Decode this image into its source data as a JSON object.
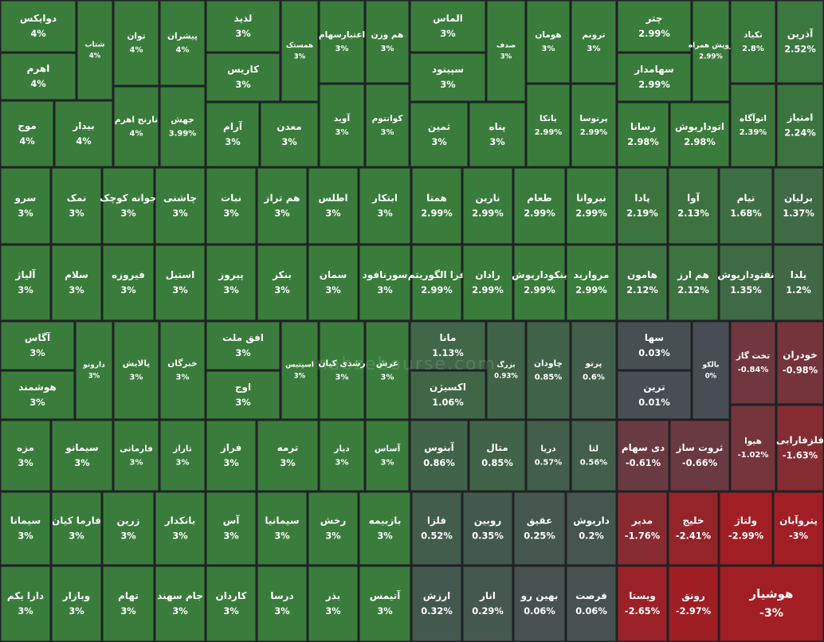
{
  "chart_data": {
    "type": "treemap",
    "watermark": "nabzebourse.com",
    "categories": [
      "دوایکس",
      "اهرم",
      "شتاب",
      "موج",
      "بیدار",
      "توان",
      "پیشران",
      "نارنج اهرم",
      "جهش",
      "لذیذ",
      "کاریس",
      "آرام",
      "معدن",
      "همستک",
      "اعتبارسهام",
      "آوید",
      "هم وزن",
      "کوانتوم",
      "الماس",
      "سپینود",
      "ثمین",
      "پناه",
      "صدف",
      "هومان",
      "بانکا",
      "ترونم",
      "پرتوسا",
      "چتر",
      "سهامدار",
      "رسانا",
      "اتوداریوش",
      "رویش همراه",
      "تکیاد",
      "اتوآگاه",
      "آذرین",
      "امتیاز",
      "سرو",
      "نمک",
      "جوانه کوچک",
      "چاشنی",
      "نبات",
      "هم تراز",
      "اطلس",
      "ابتکار",
      "همتا",
      "نارین",
      "طعام",
      "نیروانا",
      "پادا",
      "آوا",
      "تیام",
      "برلیان",
      "آلیاژ",
      "سلام",
      "فیروزه",
      "استیل",
      "پیروز",
      "بنکر",
      "سمان",
      "سورنافود",
      "فرا الگوریتم",
      "رادان",
      "بنکوداریوش",
      "مروارید",
      "هامون",
      "هم ارز",
      "نفتوداریوش",
      "یلدا",
      "آگاس",
      "هوشمند",
      "دارونو",
      "پالایش",
      "خبرگان",
      "افق ملت",
      "اوج",
      "اسپتیس",
      "رشدی کیان",
      "عرش",
      "مانا",
      "اکسیژن",
      "بزرگ",
      "چاودان",
      "پرتو",
      "سها",
      "ترین",
      "بالکو",
      "تخت گاز",
      "خودران",
      "هیوا",
      "فلزفارابی",
      "مزه",
      "سیمانو",
      "فارمانی",
      "تاراز",
      "فراز",
      "ترمه",
      "دیار",
      "آساس",
      "آبنوس",
      "متال",
      "دریا",
      "لتا",
      "دی سهام",
      "ثروت ساز",
      "سیمانا",
      "فارما کیان",
      "زرین",
      "بانکدار",
      "آس",
      "سیمانیا",
      "رخش",
      "بازبیمه",
      "فلزا",
      "روبین",
      "عقیق",
      "داریوش",
      "مدیر",
      "خلیج",
      "ولتاژ",
      "پتروآبان",
      "دارا یکم",
      "وبازار",
      "تهام",
      "جام سهند",
      "کاردان",
      "درسا",
      "بذر",
      "آتیمس",
      "ارزش",
      "انار",
      "بهین رو",
      "فرصت",
      "ویستا",
      "رونق",
      "هوشیار"
    ],
    "values": [
      4,
      4,
      4,
      4,
      4,
      4,
      4,
      4,
      3.99,
      3,
      3,
      3,
      3,
      3,
      3,
      3,
      3,
      3,
      3,
      3,
      3,
      3,
      3,
      3,
      2.99,
      3,
      2.99,
      2.99,
      2.99,
      2.98,
      2.98,
      2.99,
      2.8,
      2.39,
      2.52,
      2.24,
      3,
      3,
      3,
      3,
      3,
      3,
      3,
      3,
      2.99,
      2.99,
      2.99,
      2.99,
      2.19,
      2.13,
      1.68,
      1.37,
      3,
      3,
      3,
      3,
      3,
      3,
      3,
      3,
      2.99,
      2.99,
      2.99,
      2.99,
      2.12,
      2.12,
      1.35,
      1.2,
      3,
      3,
      3,
      3,
      3,
      3,
      3,
      3,
      3,
      3,
      1.13,
      1.06,
      0.93,
      0.85,
      0.6,
      0.03,
      0.01,
      0,
      -0.84,
      -0.98,
      -1.02,
      -1.63,
      3,
      3,
      3,
      3,
      3,
      3,
      3,
      3,
      0.86,
      0.85,
      0.57,
      0.56,
      -0.61,
      -0.66,
      3,
      3,
      3,
      3,
      3,
      3,
      3,
      3,
      0.52,
      0.35,
      0.25,
      0.2,
      -1.76,
      -2.41,
      -2.99,
      -3,
      3,
      3,
      3,
      3,
      3,
      3,
      3,
      3,
      0.32,
      0.29,
      0.06,
      0.06,
      -2.65,
      -2.97,
      -3
    ],
    "value_labels": [
      "4%",
      "4%",
      "4%",
      "4%",
      "4%",
      "4%",
      "4%",
      "4%",
      "3.99%",
      "3%",
      "3%",
      "3%",
      "3%",
      "3%",
      "3%",
      "3%",
      "3%",
      "3%",
      "3%",
      "3%",
      "3%",
      "3%",
      "3%",
      "3%",
      "2.99%",
      "3%",
      "2.99%",
      "2.99%",
      "2.99%",
      "2.98%",
      "2.98%",
      "2.99%",
      "2.8%",
      "2.39%",
      "2.52%",
      "2.24%",
      "3%",
      "3%",
      "3%",
      "3%",
      "3%",
      "3%",
      "3%",
      "3%",
      "2.99%",
      "2.99%",
      "2.99%",
      "2.99%",
      "2.19%",
      "2.13%",
      "1.68%",
      "1.37%",
      "3%",
      "3%",
      "3%",
      "3%",
      "3%",
      "3%",
      "3%",
      "3%",
      "2.99%",
      "2.99%",
      "2.99%",
      "2.99%",
      "2.12%",
      "2.12%",
      "1.35%",
      "1.2%",
      "3%",
      "3%",
      "3%",
      "3%",
      "3%",
      "3%",
      "3%",
      "3%",
      "3%",
      "3%",
      "1.13%",
      "1.06%",
      "0.93%",
      "0.85%",
      "0.6%",
      "0.03%",
      "0.01%",
      "0%",
      "-0.84%",
      "-0.98%",
      "-1.02%",
      "-1.63%",
      "3%",
      "3%",
      "3%",
      "3%",
      "3%",
      "3%",
      "3%",
      "3%",
      "0.86%",
      "0.85%",
      "0.57%",
      "0.56%",
      "-0.61%",
      "-0.66%",
      "3%",
      "3%",
      "3%",
      "3%",
      "3%",
      "3%",
      "3%",
      "3%",
      "0.52%",
      "0.35%",
      "0.25%",
      "0.2%",
      "-1.76%",
      "-2.41%",
      "-2.99%",
      "-3%",
      "3%",
      "3%",
      "3%",
      "3%",
      "3%",
      "3%",
      "3%",
      "3%",
      "0.32%",
      "0.29%",
      "0.06%",
      "0.06%",
      "-2.65%",
      "-2.97%",
      "-3%"
    ]
  }
}
